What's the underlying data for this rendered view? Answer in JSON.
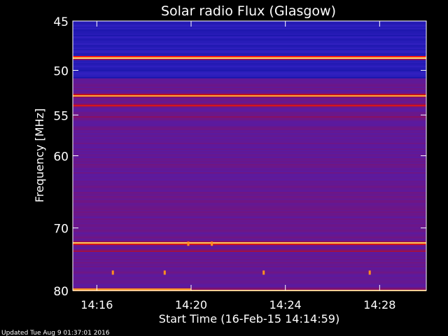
{
  "chart_data": {
    "type": "heatmap",
    "title": "Solar radio Flux (Glasgow)",
    "xlabel": "Start Time (16-Feb-15 14:14:59)",
    "ylabel": "Frequency [MHz]",
    "x_ticks": [
      "14:16",
      "14:20",
      "14:24",
      "14:28"
    ],
    "x_tick_minutes": [
      1.02,
      5.02,
      9.02,
      13.02
    ],
    "x_range_minutes": [
      0,
      15.0
    ],
    "y_ticks": [
      45,
      50,
      55,
      60,
      70,
      80
    ],
    "y_range_mhz": [
      45,
      80
    ],
    "y_scale": "log",
    "colormap": [
      "#1010a0",
      "#3020c0",
      "#5a1aa0",
      "#8a1060",
      "#c01020",
      "#ff2010",
      "#ff9020",
      "#ffe070",
      "#ffffff"
    ],
    "background_level": 0.28,
    "bright_bands": [
      {
        "freq_mhz": 45.3,
        "level": 0.05
      },
      {
        "freq_mhz": 46.1,
        "level": 0.08
      },
      {
        "freq_mhz": 47.0,
        "level": 0.12
      },
      {
        "freq_mhz": 48.6,
        "level": 1.0
      },
      {
        "freq_mhz": 49.7,
        "level": 0.08
      },
      {
        "freq_mhz": 51.4,
        "level": 0.1
      },
      {
        "freq_mhz": 52.7,
        "level": 0.85
      },
      {
        "freq_mhz": 53.8,
        "level": 0.62
      },
      {
        "freq_mhz": 55.2,
        "level": 0.45
      },
      {
        "freq_mhz": 72.2,
        "level": 0.92
      },
      {
        "freq_mhz": 73.4,
        "level": 0.5
      },
      {
        "freq_mhz": 79.9,
        "level": 0.8
      }
    ],
    "bursts": [
      {
        "time_min": 3.9,
        "freq_mhz": 77.0
      },
      {
        "time_min": 1.7,
        "freq_mhz": 77.0
      },
      {
        "time_min": 8.1,
        "freq_mhz": 77.0
      },
      {
        "time_min": 12.6,
        "freq_mhz": 77.0
      },
      {
        "time_min": 4.9,
        "freq_mhz": 72.4
      },
      {
        "time_min": 5.9,
        "freq_mhz": 72.4
      }
    ]
  },
  "footer": {
    "updated_text": "Updated Tue Aug  9 01:37:01 2016"
  }
}
